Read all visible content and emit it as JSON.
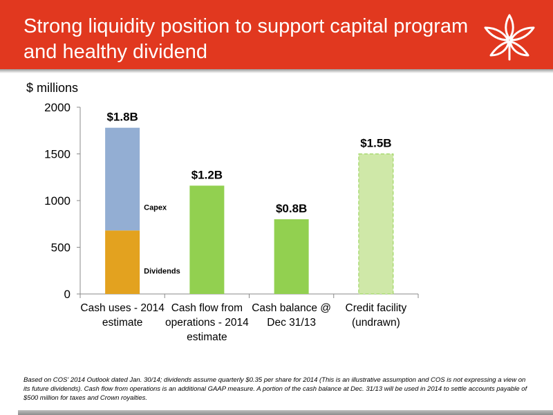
{
  "slide": {
    "title": "Strong liquidity position to support capital program and healthy dividend",
    "unit_label": "$ millions",
    "footnote": "Based on COS' 2014 Outlook dated Jan. 30/14; dividends assume quarterly $0.35 per share for 2014 (This is an illustrative assumption and COS is not expressing a view on its future dividends). Cash flow from operations is an additional GAAP measure.  A portion of the cash balance at Dec. 31/13 will be used in 2014 to settle accounts payable of $500 million for taxes and Crown royalties."
  },
  "logo": {
    "icon": "leaf-flower-logo-icon"
  },
  "chart_data": {
    "type": "bar",
    "ylim": [
      0,
      2000
    ],
    "yticks": [
      "0",
      "500",
      "1000",
      "1500",
      "2000"
    ],
    "ytick_values": [
      0,
      500,
      1000,
      1500,
      2000
    ],
    "grid": false,
    "categories": [
      [
        "Cash uses - 2014",
        "estimate"
      ],
      [
        "Cash flow from",
        "operations -  2014",
        "estimate"
      ],
      [
        "Cash balance @",
        "Dec 31/13"
      ],
      [
        "Credit facility",
        "(undrawn)"
      ]
    ],
    "bars": [
      {
        "stack": [
          {
            "name": "Dividends",
            "value": 680,
            "color": "#e3a21f"
          },
          {
            "name": "Capex",
            "value": 1100,
            "color": "#93aed3"
          }
        ],
        "total_label": "$1.8B"
      },
      {
        "stack": [
          {
            "name": "",
            "value": 1160,
            "color": "#92d050"
          }
        ],
        "total_label": "$1.2B"
      },
      {
        "stack": [
          {
            "name": "",
            "value": 800,
            "color": "#92d050"
          }
        ],
        "total_label": "$0.8B"
      },
      {
        "stack": [
          {
            "name": "",
            "value": 1500,
            "color": "#cfe8a8",
            "dashed": true
          }
        ],
        "total_label": "$1.5B"
      }
    ],
    "segment_labels": [
      "Capex",
      "Dividends"
    ]
  },
  "colors": {
    "header": "#e1381f",
    "capex": "#93aed3",
    "dividends": "#e3a21f",
    "cash": "#92d050",
    "credit": "#cfe8a8"
  }
}
